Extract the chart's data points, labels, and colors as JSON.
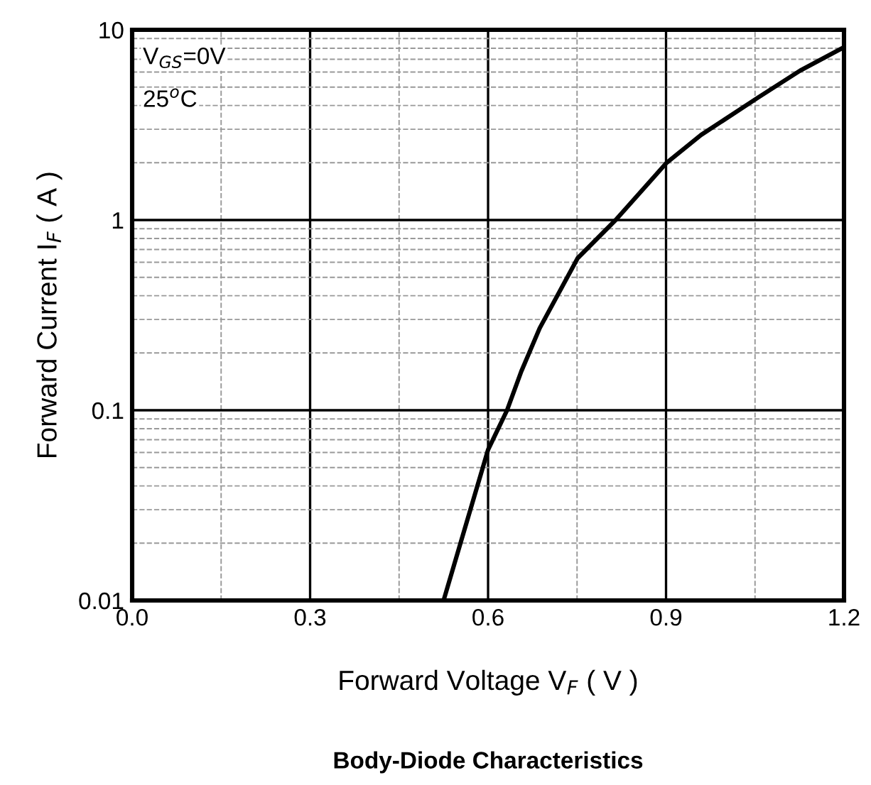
{
  "chart_data": {
    "type": "line",
    "title": "Body-Diode Characteristics",
    "xlabel": "Forward Voltage V$_{F}$ ( V )",
    "ylabel": "Forward Current I$_{F}$ ( A )",
    "annotations": [
      "V$_{GS}$=0V",
      "25$^{o}$C"
    ],
    "log": "y",
    "grid": true,
    "line_style": "solid",
    "xlim": [
      0,
      1.2
    ],
    "ylim": [
      0.01,
      10
    ],
    "xticks": [
      {
        "value": 0,
        "label": "0.0"
      },
      0.3,
      0.6,
      0.9,
      1.2
    ],
    "yticks": [
      0.01,
      0.1,
      1,
      10
    ],
    "series": [
      {
        "color": "#000000",
        "x": [
          0.525,
          0.6,
          0.632,
          0.656,
          0.687,
          0.751,
          0.815,
          0.901,
          0.959,
          1.055,
          1.126,
          1.2
        ],
        "values": [
          0.01,
          0.062,
          0.1,
          0.16,
          0.27,
          0.63,
          1.0,
          2.0,
          2.8,
          4.4,
          6.1,
          8.1
        ]
      }
    ]
  }
}
